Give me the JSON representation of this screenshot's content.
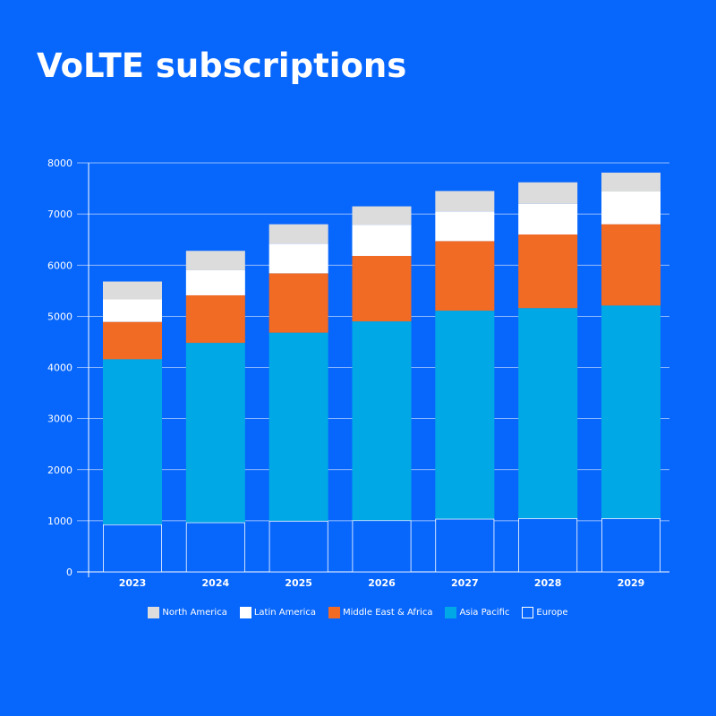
{
  "chart_data": {
    "type": "bar",
    "stacked": true,
    "title": "VoLTE subscriptions",
    "xlabel": "",
    "ylabel": "",
    "ylim": [
      0,
      8000
    ],
    "yticks": [
      "0",
      "1000",
      "2000",
      "3000",
      "4000",
      "5000",
      "6000",
      "7000",
      "8000"
    ],
    "grid": true,
    "legend_position": "bottom-center",
    "categories": [
      "2023",
      "2024",
      "2025",
      "2026",
      "2027",
      "2028",
      "2029"
    ],
    "series": [
      {
        "name": "Europe",
        "color": "#0766fc",
        "outline": "#ffffff",
        "values": [
          930,
          970,
          1000,
          1010,
          1040,
          1050,
          1050
        ]
      },
      {
        "name": "Asia Pacific",
        "color": "#00a9e6",
        "values": [
          3230,
          3510,
          3680,
          3890,
          4070,
          4110,
          4160
        ]
      },
      {
        "name": "Middle East & Africa",
        "color": "#f26b24",
        "values": [
          730,
          930,
          1160,
          1280,
          1360,
          1440,
          1590
        ]
      },
      {
        "name": "Latin America",
        "color": "#ffffff",
        "values": [
          440,
          490,
          580,
          610,
          580,
          600,
          640
        ]
      },
      {
        "name": "North America",
        "color": "#dcdcdc",
        "values": [
          350,
          380,
          380,
          360,
          400,
          420,
          370
        ]
      }
    ],
    "legend_order": [
      "North America",
      "Latin America",
      "Middle East & Africa",
      "Asia Pacific",
      "Europe"
    ]
  }
}
